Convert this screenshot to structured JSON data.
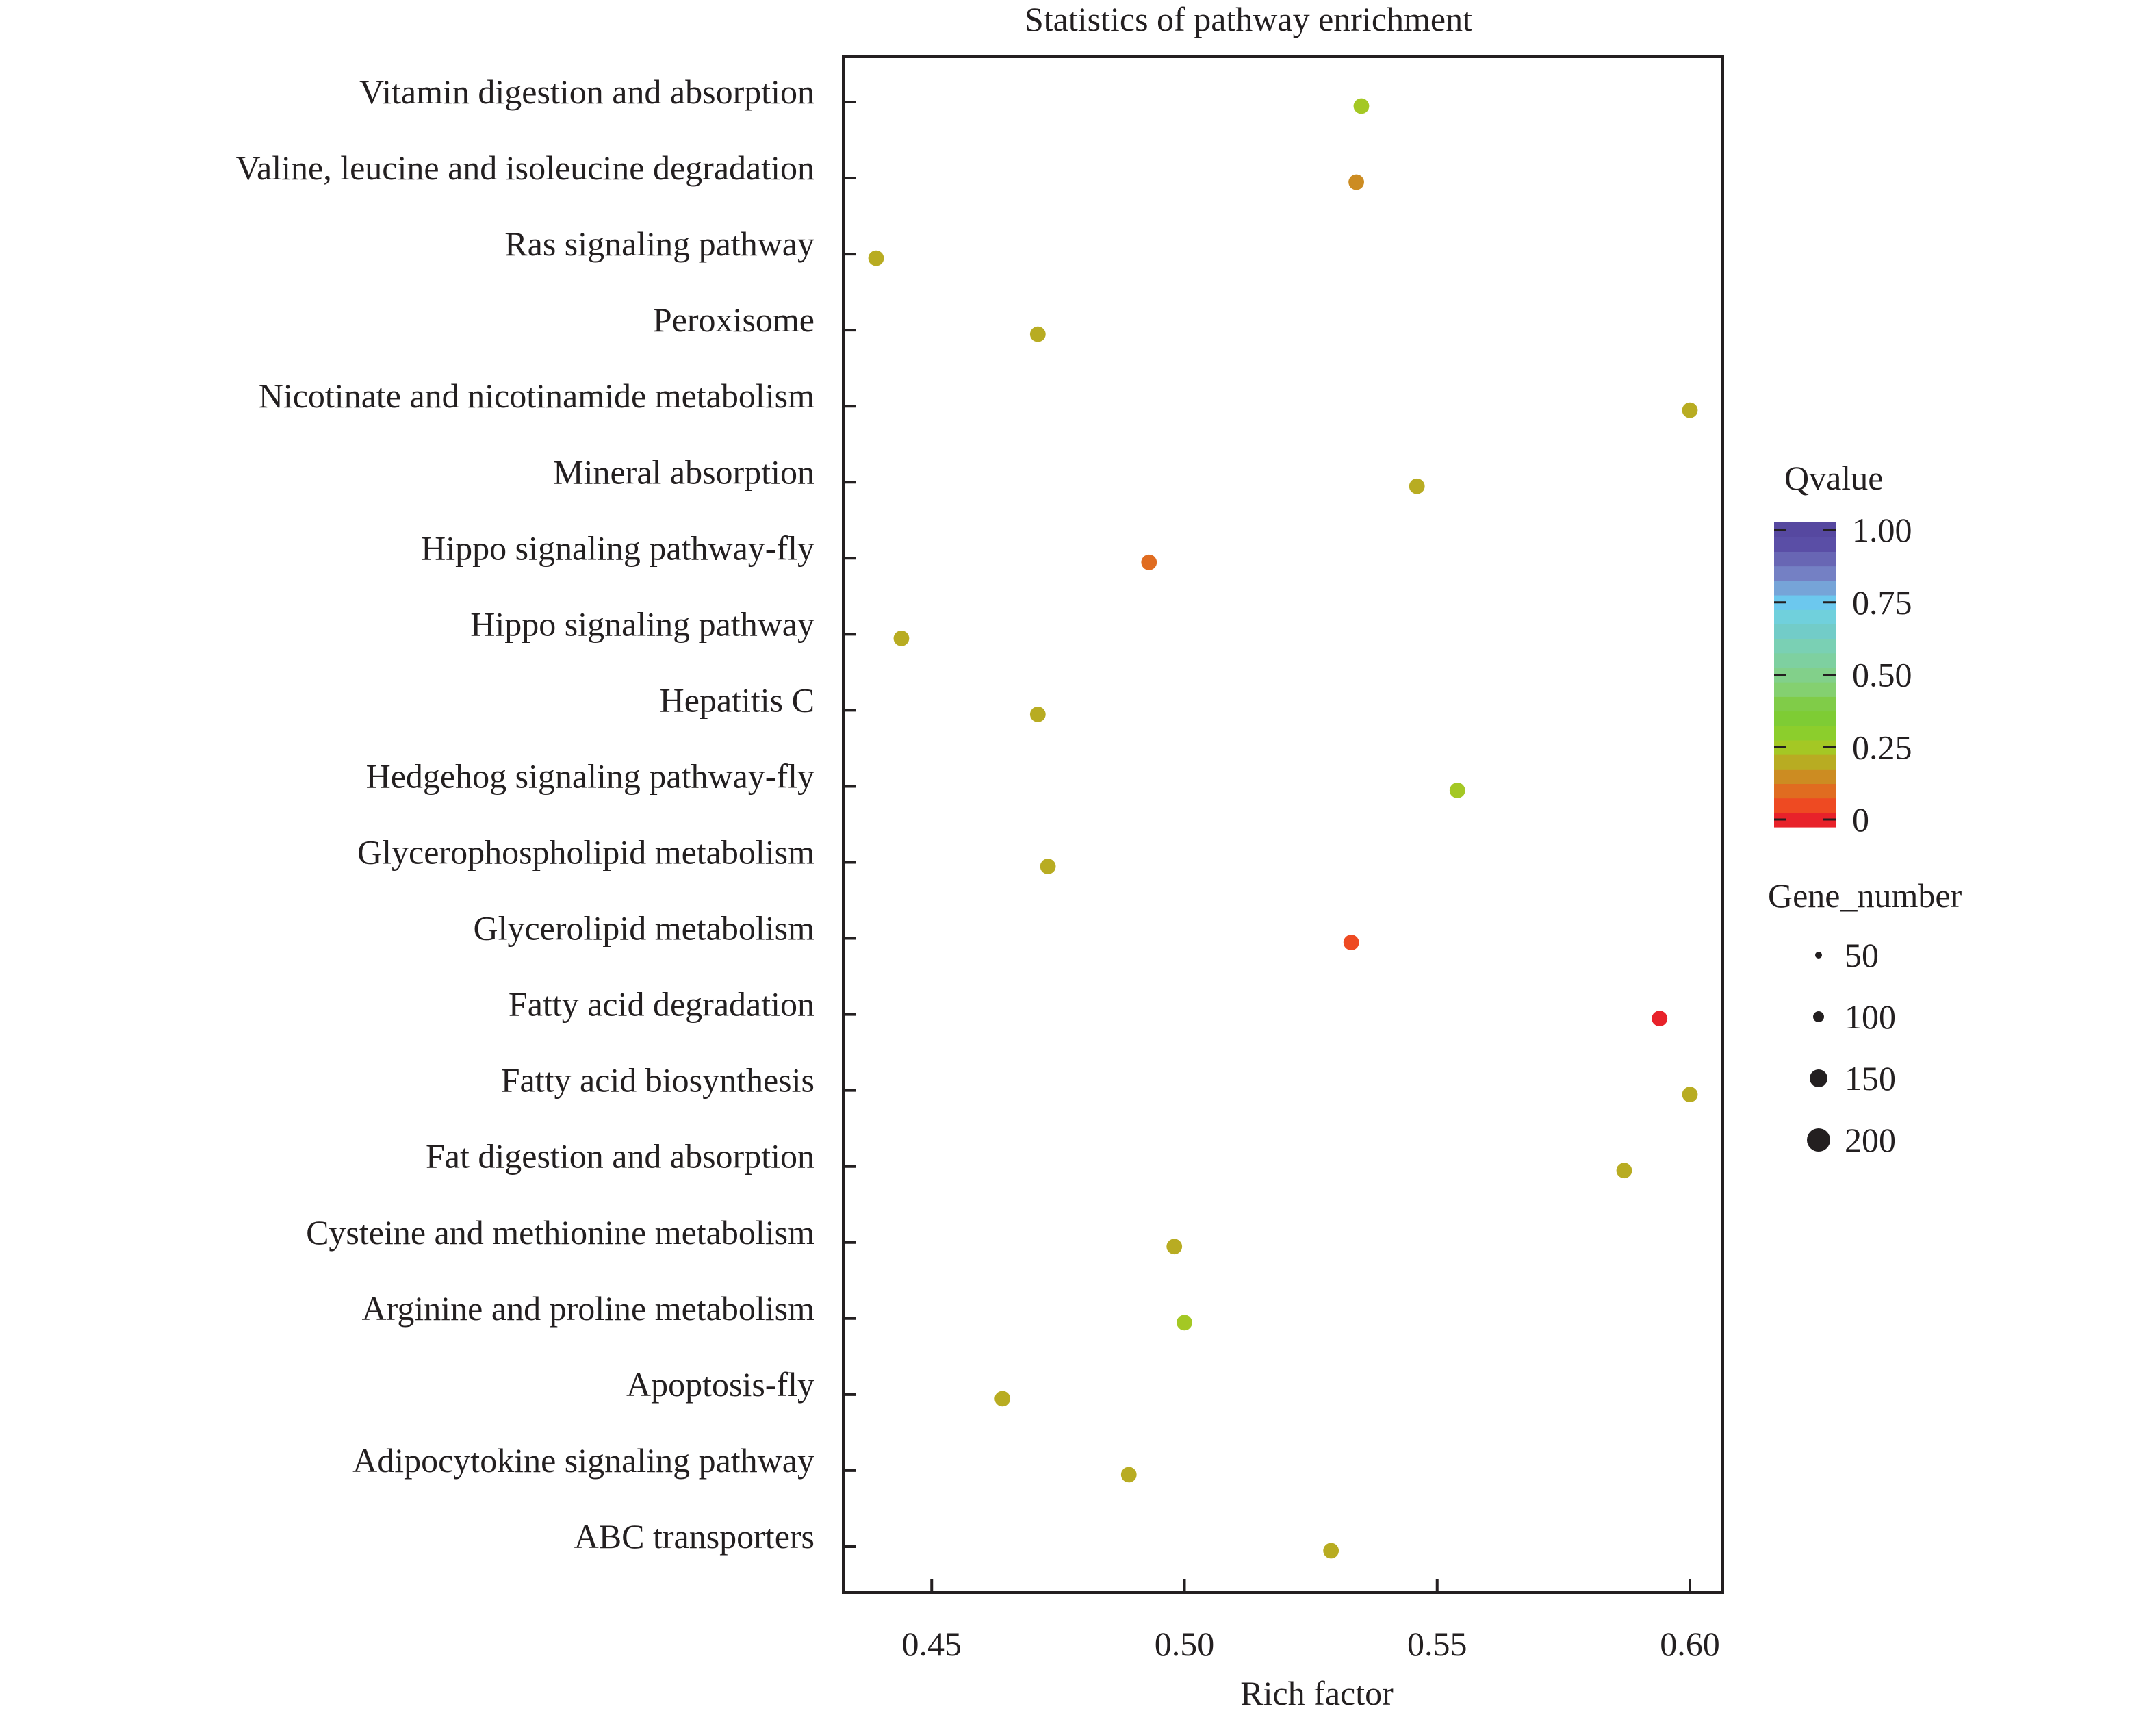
{
  "chart_data": {
    "type": "scatter",
    "title": "Statistics of pathway enrichment",
    "xlabel": "Rich factor",
    "ylabel": "",
    "xlim": [
      0.4325,
      0.6065
    ],
    "x_ticks": [
      0.45,
      0.5,
      0.55,
      0.6
    ],
    "x_tick_labels": [
      "0.45",
      "0.50",
      "0.55",
      "0.60"
    ],
    "grid": false,
    "categories": [
      "Vitamin digestion and absorption",
      "Valine, leucine and isoleucine degradation",
      "Ras signaling pathway",
      "Peroxisome",
      "Nicotinate and nicotinamide metabolism",
      "Mineral absorption",
      "Hippo signaling pathway-fly",
      "Hippo signaling pathway",
      "Hepatitis C",
      "Hedgehog signaling pathway-fly",
      "Glycerophospholipid metabolism",
      "Glycerolipid metabolism",
      "Fatty acid degradation",
      "Fatty acid biosynthesis",
      "Fat digestion and absorption",
      "Cysteine and methionine metabolism",
      "Arginine and proline metabolism",
      "Apoptosis-fly",
      "Adipocytokine signaling pathway",
      "ABC transporters"
    ],
    "points": [
      {
        "pathway": "Vitamin digestion and absorption",
        "rich_factor": 0.535,
        "qvalue": 0.25,
        "gene_number": 130
      },
      {
        "pathway": "Valine, leucine and isoleucine degradation",
        "rich_factor": 0.534,
        "qvalue": 0.15,
        "gene_number": 130
      },
      {
        "pathway": "Ras signaling pathway",
        "rich_factor": 0.439,
        "qvalue": 0.2,
        "gene_number": 130
      },
      {
        "pathway": "Peroxisome",
        "rich_factor": 0.471,
        "qvalue": 0.2,
        "gene_number": 130
      },
      {
        "pathway": "Nicotinate and nicotinamide metabolism",
        "rich_factor": 0.6,
        "qvalue": 0.19,
        "gene_number": 130
      },
      {
        "pathway": "Mineral absorption",
        "rich_factor": 0.546,
        "qvalue": 0.18,
        "gene_number": 130
      },
      {
        "pathway": "Hippo signaling pathway-fly",
        "rich_factor": 0.493,
        "qvalue": 0.1,
        "gene_number": 130
      },
      {
        "pathway": "Hippo signaling pathway",
        "rich_factor": 0.444,
        "qvalue": 0.2,
        "gene_number": 130
      },
      {
        "pathway": "Hepatitis C",
        "rich_factor": 0.471,
        "qvalue": 0.2,
        "gene_number": 130
      },
      {
        "pathway": "Hedgehog signaling pathway-fly",
        "rich_factor": 0.554,
        "qvalue": 0.25,
        "gene_number": 130
      },
      {
        "pathway": "Glycerophospholipid metabolism",
        "rich_factor": 0.473,
        "qvalue": 0.2,
        "gene_number": 130
      },
      {
        "pathway": "Glycerolipid metabolism",
        "rich_factor": 0.533,
        "qvalue": 0.06,
        "gene_number": 130
      },
      {
        "pathway": "Fatty acid degradation",
        "rich_factor": 0.594,
        "qvalue": 0.01,
        "gene_number": 130
      },
      {
        "pathway": "Fatty acid biosynthesis",
        "rich_factor": 0.6,
        "qvalue": 0.19,
        "gene_number": 130
      },
      {
        "pathway": "Fat digestion and absorption",
        "rich_factor": 0.587,
        "qvalue": 0.19,
        "gene_number": 130
      },
      {
        "pathway": "Cysteine and methionine metabolism",
        "rich_factor": 0.498,
        "qvalue": 0.2,
        "gene_number": 130
      },
      {
        "pathway": "Arginine and proline metabolism",
        "rich_factor": 0.5,
        "qvalue": 0.25,
        "gene_number": 130
      },
      {
        "pathway": "Apoptosis-fly",
        "rich_factor": 0.464,
        "qvalue": 0.19,
        "gene_number": 130
      },
      {
        "pathway": "Adipocytokine signaling pathway",
        "rich_factor": 0.489,
        "qvalue": 0.19,
        "gene_number": 130
      },
      {
        "pathway": "ABC transporters",
        "rich_factor": 0.529,
        "qvalue": 0.2,
        "gene_number": 130
      }
    ],
    "color_legend": {
      "title": "Qvalue",
      "range": [
        0,
        1
      ],
      "ticks": [
        1.0,
        0.75,
        0.5,
        0.25,
        0
      ],
      "tick_labels": [
        "1.00",
        "0.75",
        "0.50",
        "0.25",
        "0"
      ],
      "colors_low_to_high": [
        "#e8222a",
        "#ee4a22",
        "#e06c20",
        "#cc8c22",
        "#b8ac22",
        "#a4c824",
        "#8cce2c",
        "#7ecc34",
        "#80cc48",
        "#84d070",
        "#82d08a",
        "#7ed0a0",
        "#7ad0b4",
        "#72ccc8",
        "#70d0dc",
        "#6cc8ee",
        "#76a4d8",
        "#7480c4",
        "#6866b4",
        "#5a4ea6",
        "#5648a0"
      ]
    },
    "size_legend": {
      "title": "Gene_number",
      "values": [
        50,
        100,
        150,
        200
      ],
      "labels": [
        "50",
        "100",
        "150",
        "200"
      ],
      "color": "#231f20"
    },
    "legend_placement": "right"
  }
}
